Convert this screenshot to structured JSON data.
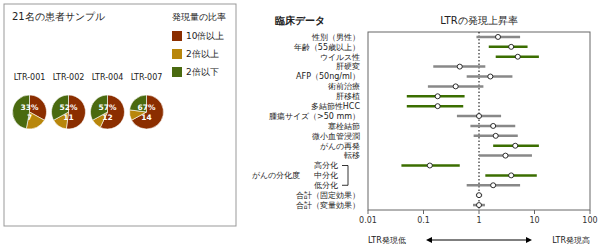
{
  "chart_data": [
    {
      "type": "pie",
      "title": "21名の患者サンプル",
      "legend_title": "発現量の比率",
      "categories": [
        "10倍以上",
        "2倍以上",
        "2倍以下"
      ],
      "colors": [
        "#8B2E00",
        "#B8860B",
        "#4A6A10"
      ],
      "legend": "right",
      "series": [
        {
          "name": "LTR-001",
          "values": [
            33,
            20,
            47
          ],
          "center_share": {
            "value": 33,
            "label": "33%"
          },
          "center_count": 7
        },
        {
          "name": "LTR-002",
          "values": [
            52,
            15,
            33
          ],
          "center_share": {
            "value": 52,
            "label": "52%"
          },
          "center_count": 11
        },
        {
          "name": "LTR-004",
          "values": [
            57,
            10,
            33
          ],
          "center_share": {
            "value": 57,
            "label": "57%"
          },
          "center_count": 12
        },
        {
          "name": "LTR-007",
          "values": [
            67,
            10,
            23
          ],
          "center_share": {
            "value": 67,
            "label": "67%"
          },
          "center_count": 14
        }
      ]
    },
    {
      "type": "forest",
      "title": "LTRの発現上昇率",
      "ylabel": "臨床データ",
      "categories": [
        "性別（男性）",
        "年齢（55歳以上）",
        "ウイルス性",
        "肝硬変",
        "AFP（50ng/ml）",
        "術前治療",
        "肝移植",
        "多結節性HCC",
        "腫瘍サイズ（>50 mm）",
        "塞栓結節",
        "微小血管浸潤",
        "がんの再発",
        "転移",
        "高分化",
        "中分化",
        "低分化",
        "合計（固定効果）",
        "合計（変量効果）"
      ],
      "groups": [
        {
          "label": "がんの分化度",
          "rows": [
            13,
            14,
            15
          ]
        }
      ],
      "series": [
        {
          "values": [
            2.2,
            3.8,
            5.0,
            0.45,
            1.6,
            0.38,
            0.18,
            0.18,
            1.0,
            1.8,
            2.0,
            4.5,
            3.0,
            0.13,
            3.8,
            1.8,
            1.0,
            1.0
          ],
          "lower": [
            0.9,
            1.5,
            2.0,
            0.15,
            0.6,
            0.12,
            0.05,
            0.05,
            0.4,
            0.7,
            0.8,
            1.8,
            1.0,
            0.04,
            1.3,
            0.6,
            0.88,
            0.78
          ],
          "upper": [
            5.5,
            7.5,
            12.0,
            1.3,
            4.0,
            1.2,
            0.55,
            0.52,
            2.5,
            4.5,
            5.0,
            12.0,
            9.0,
            0.45,
            11.0,
            5.5,
            1.14,
            1.28
          ],
          "colors": [
            "#888888",
            "#3B6E00",
            "#3B6E00",
            "#888888",
            "#888888",
            "#888888",
            "#3B6E00",
            "#3B6E00",
            "#888888",
            "#888888",
            "#888888",
            "#3B6E00",
            "#888888",
            "#3B6E00",
            "#3B6E00",
            "#888888",
            "#888888",
            "#888888"
          ]
        }
      ],
      "log": "x",
      "xlim": [
        0.01,
        100
      ],
      "xticks": [
        0.01,
        0.1,
        1,
        10,
        100
      ],
      "reference_x": 1,
      "annotations": [
        "LTR発現低",
        "LTR発現高"
      ],
      "grid": false
    }
  ]
}
